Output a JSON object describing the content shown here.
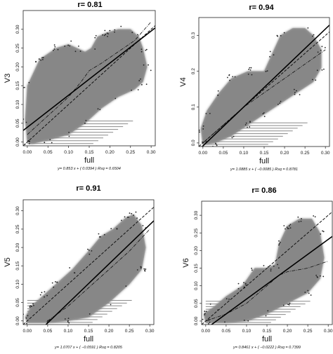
{
  "chart_data": [
    {
      "type": "scatter",
      "title": "r= 0.81",
      "xlabel": "full",
      "ylabel": "V3",
      "xlim": [
        -0.01,
        0.31
      ],
      "ylim": [
        -0.01,
        0.35
      ],
      "xticks": [
        "0.00",
        "0.05",
        "0.10",
        "0.15",
        "0.20",
        "0.25",
        "0.30"
      ],
      "yticks": [
        "0.00",
        "0.05",
        "0.10",
        "0.15",
        "0.20",
        "0.25",
        "0.30"
      ],
      "equation": "y= 0.853 x + ( 0.0394 )   Rsq = 0.6504",
      "fit": {
        "slope": 0.853,
        "intercept": 0.0394
      },
      "dashed": {
        "slope": 1.0,
        "intercept": 0.0
      },
      "lowess": [
        [
          0.0,
          0.02
        ],
        [
          0.05,
          0.07
        ],
        [
          0.1,
          0.12
        ],
        [
          0.13,
          0.16
        ],
        [
          0.15,
          0.19
        ],
        [
          0.18,
          0.21
        ],
        [
          0.22,
          0.24
        ],
        [
          0.26,
          0.27
        ],
        [
          0.3,
          0.32
        ]
      ],
      "cloud": [
        [
          0.0,
          0.0
        ],
        [
          0.01,
          -0.005
        ],
        [
          0.05,
          0.005
        ],
        [
          0.1,
          0.02
        ],
        [
          0.14,
          0.05
        ],
        [
          0.18,
          0.09
        ],
        [
          0.22,
          0.12
        ],
        [
          0.26,
          0.14
        ],
        [
          0.28,
          0.16
        ],
        [
          0.29,
          0.2
        ],
        [
          0.28,
          0.25
        ],
        [
          0.27,
          0.28
        ],
        [
          0.25,
          0.3
        ],
        [
          0.22,
          0.3
        ],
        [
          0.19,
          0.29
        ],
        [
          0.17,
          0.28
        ],
        [
          0.155,
          0.25
        ],
        [
          0.14,
          0.24
        ],
        [
          0.12,
          0.25
        ],
        [
          0.1,
          0.26
        ],
        [
          0.07,
          0.25
        ],
        [
          0.03,
          0.22
        ],
        [
          0.0,
          0.15
        ],
        [
          -0.005,
          0.06
        ]
      ]
    },
    {
      "type": "scatter",
      "title": "r= 0.94",
      "xlabel": "full",
      "ylabel": "V4",
      "xlim": [
        -0.01,
        0.31
      ],
      "ylim": [
        -0.01,
        0.35
      ],
      "xticks": [
        "0.00",
        "0.05",
        "0.10",
        "0.15",
        "0.20",
        "0.25",
        "0.30"
      ],
      "yticks": [
        "0.0",
        "0.1",
        "0.2",
        "0.3"
      ],
      "ytick_values": [
        0.0,
        0.1,
        0.2,
        0.3
      ],
      "equation": "y= 1.0885 x + ( −0.0085 )   Rsq = 0.8781",
      "fit": {
        "slope": 1.0885,
        "intercept": -0.0085
      },
      "dashed": {
        "slope": 1.0,
        "intercept": 0.0
      },
      "lowess": [
        [
          0.0,
          0.0
        ],
        [
          0.05,
          0.05
        ],
        [
          0.1,
          0.1
        ],
        [
          0.15,
          0.14
        ],
        [
          0.2,
          0.18
        ],
        [
          0.25,
          0.22
        ],
        [
          0.3,
          0.26
        ]
      ],
      "cloud": [
        [
          0.0,
          -0.005
        ],
        [
          0.03,
          0.0
        ],
        [
          0.07,
          0.02
        ],
        [
          0.11,
          0.05
        ],
        [
          0.15,
          0.08
        ],
        [
          0.19,
          0.11
        ],
        [
          0.23,
          0.14
        ],
        [
          0.27,
          0.17
        ],
        [
          0.29,
          0.21
        ],
        [
          0.29,
          0.26
        ],
        [
          0.27,
          0.3
        ],
        [
          0.25,
          0.32
        ],
        [
          0.22,
          0.32
        ],
        [
          0.19,
          0.3
        ],
        [
          0.17,
          0.25
        ],
        [
          0.15,
          0.2
        ],
        [
          0.11,
          0.2
        ],
        [
          0.07,
          0.18
        ],
        [
          0.04,
          0.14
        ],
        [
          0.01,
          0.09
        ],
        [
          -0.005,
          0.04
        ]
      ]
    },
    {
      "type": "scatter",
      "title": "r= 0.91",
      "xlabel": "full",
      "ylabel": "V5",
      "xlim": [
        -0.01,
        0.31
      ],
      "ylim": [
        -0.01,
        0.33
      ],
      "xticks": [
        "0.00",
        "0.05",
        "0.10",
        "0.15",
        "0.20",
        "0.25",
        "0.30"
      ],
      "yticks": [
        "0.00",
        "0.05",
        "0.10",
        "0.15",
        "0.20",
        "0.25",
        "0.30"
      ],
      "equation": "y= 1.0707 x + ( −0.0591 )   Rsq = 0.8205",
      "fit": {
        "slope": 1.0707,
        "intercept": -0.0591
      },
      "dashed": {
        "slope": 1.0,
        "intercept": 0.0
      },
      "lowess": [
        [
          0.05,
          0.0
        ],
        [
          0.1,
          0.04
        ],
        [
          0.15,
          0.09
        ],
        [
          0.2,
          0.14
        ],
        [
          0.25,
          0.19
        ],
        [
          0.3,
          0.25
        ]
      ],
      "cloud": [
        [
          0.0,
          -0.005
        ],
        [
          0.05,
          -0.005
        ],
        [
          0.1,
          0.0
        ],
        [
          0.15,
          0.01
        ],
        [
          0.2,
          0.05
        ],
        [
          0.25,
          0.1
        ],
        [
          0.28,
          0.14
        ],
        [
          0.29,
          0.2
        ],
        [
          0.28,
          0.26
        ],
        [
          0.26,
          0.29
        ],
        [
          0.24,
          0.28
        ],
        [
          0.21,
          0.25
        ],
        [
          0.18,
          0.23
        ],
        [
          0.15,
          0.19
        ],
        [
          0.11,
          0.14
        ],
        [
          0.07,
          0.1
        ],
        [
          0.04,
          0.07
        ],
        [
          0.01,
          0.04
        ],
        [
          -0.005,
          0.01
        ]
      ]
    },
    {
      "type": "scatter",
      "title": "r= 0.86",
      "xlabel": "full",
      "ylabel": "V6",
      "xlim": [
        -0.01,
        0.31
      ],
      "ylim": [
        -0.01,
        0.34
      ],
      "xticks": [
        "0.00",
        "0.05",
        "0.10",
        "0.15",
        "0.20",
        "0.25",
        "0.30"
      ],
      "yticks": [
        "0.00",
        "0.05",
        "0.10",
        "0.15",
        "0.20",
        "0.25",
        "0.30"
      ],
      "equation": "y= 0.8461 x + ( −0.0222 )   Rsq = 0.7399",
      "fit": {
        "slope": 0.8461,
        "intercept": -0.0222
      },
      "dashed": {
        "slope": 1.0,
        "intercept": 0.0
      },
      "lowess": [
        [
          0.0,
          0.0
        ],
        [
          0.05,
          0.02
        ],
        [
          0.1,
          0.05
        ],
        [
          0.15,
          0.1
        ],
        [
          0.18,
          0.13
        ],
        [
          0.2,
          0.14
        ],
        [
          0.25,
          0.15
        ],
        [
          0.3,
          0.17
        ]
      ],
      "cloud": [
        [
          0.0,
          -0.005
        ],
        [
          0.05,
          -0.005
        ],
        [
          0.1,
          0.0
        ],
        [
          0.15,
          0.02
        ],
        [
          0.2,
          0.05
        ],
        [
          0.25,
          0.08
        ],
        [
          0.28,
          0.12
        ],
        [
          0.29,
          0.18
        ],
        [
          0.28,
          0.25
        ],
        [
          0.26,
          0.29
        ],
        [
          0.23,
          0.29
        ],
        [
          0.2,
          0.27
        ],
        [
          0.18,
          0.22
        ],
        [
          0.17,
          0.16
        ],
        [
          0.15,
          0.15
        ],
        [
          0.12,
          0.15
        ],
        [
          0.09,
          0.1
        ],
        [
          0.05,
          0.07
        ],
        [
          0.02,
          0.04
        ],
        [
          -0.005,
          0.02
        ]
      ]
    }
  ]
}
